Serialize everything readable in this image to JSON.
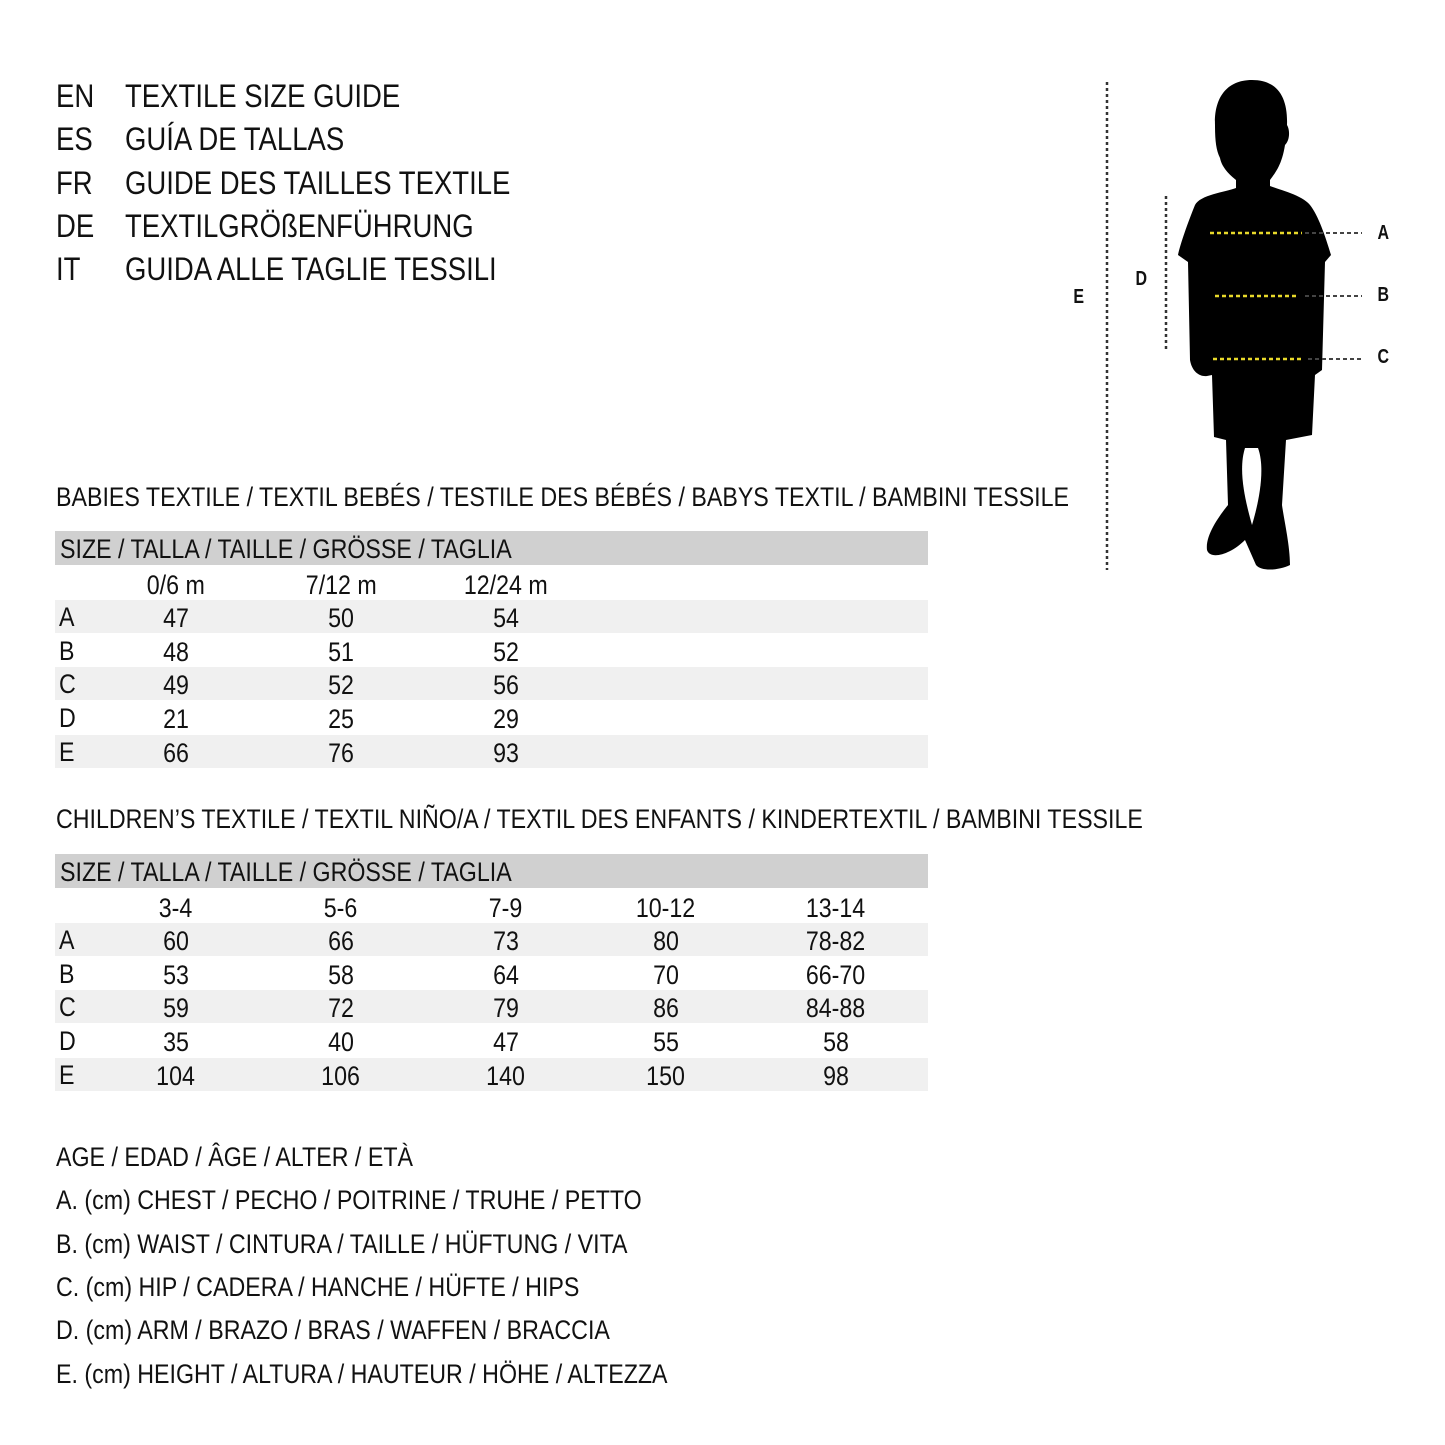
{
  "titles": [
    {
      "code": "EN",
      "text": "TEXTILE SIZE GUIDE"
    },
    {
      "code": "ES",
      "text": "GUÍA DE TALLAS"
    },
    {
      "code": "FR",
      "text": "GUIDE DES TAILLES TEXTILE"
    },
    {
      "code": "DE",
      "text": "TEXTILGRÖßENFÜHRUNG"
    },
    {
      "code": "IT",
      "text": "GUIDA ALLE TAGLIE TESSILI"
    }
  ],
  "figure": {
    "labels": {
      "a": "A",
      "b": "B",
      "c": "C",
      "d": "D",
      "e": "E"
    },
    "measure_color": "#e8d92a"
  },
  "babies": {
    "title": "BABIES TEXTILE / TEXTIL BEBÉS / TESTILE DES BÉBÉS / BABYS TEXTIL / BAMBINI TESSILE",
    "header": "SIZE / TALLA / TAILLE / GRÖSSE / TAGLIA",
    "columns": [
      "0/6 m",
      "7/12 m",
      "12/24 m"
    ],
    "rows": [
      {
        "label": "A",
        "values": [
          "47",
          "50",
          "54"
        ]
      },
      {
        "label": "B",
        "values": [
          "48",
          "51",
          "52"
        ]
      },
      {
        "label": "C",
        "values": [
          "49",
          "52",
          "56"
        ]
      },
      {
        "label": "D",
        "values": [
          "21",
          "25",
          "29"
        ]
      },
      {
        "label": "E",
        "values": [
          "66",
          "76",
          "93"
        ]
      }
    ]
  },
  "children": {
    "title": "CHILDREN’S TEXTILE / TEXTIL NIÑO/A / TEXTIL DES ENFANTS / KINDERTEXTIL / BAMBINI TESSILE",
    "header": "SIZE / TALLA / TAILLE / GRÖSSE / TAGLIA",
    "columns": [
      "3-4",
      "5-6",
      "7-9",
      "10-12",
      "13-14"
    ],
    "rows": [
      {
        "label": "A",
        "values": [
          "60",
          "66",
          "73",
          "80",
          "78-82"
        ]
      },
      {
        "label": "B",
        "values": [
          "53",
          "58",
          "64",
          "70",
          "66-70"
        ]
      },
      {
        "label": "C",
        "values": [
          "59",
          "72",
          "79",
          "86",
          "84-88"
        ]
      },
      {
        "label": "D",
        "values": [
          "35",
          "40",
          "47",
          "55",
          "58"
        ]
      },
      {
        "label": "E",
        "values": [
          "104",
          "106",
          "140",
          "150",
          "98"
        ]
      }
    ]
  },
  "legend": [
    "AGE / EDAD / ÂGE / ALTER / ETÀ",
    "A. (cm) CHEST / PECHO / POITRINE / TRUHE / PETTO",
    "B. (cm) WAIST / CINTURA / TAILLE / HÜFTUNG / VITA",
    "C. (cm) HIP / CADERA / HANCHE / HÜFTE / HIPS",
    "D. (cm) ARM / BRAZO / BRAS / WAFFEN / BRACCIA",
    "E. (cm) HEIGHT / ALTURA / HAUTEUR / HÖHE / ALTEZZA"
  ]
}
